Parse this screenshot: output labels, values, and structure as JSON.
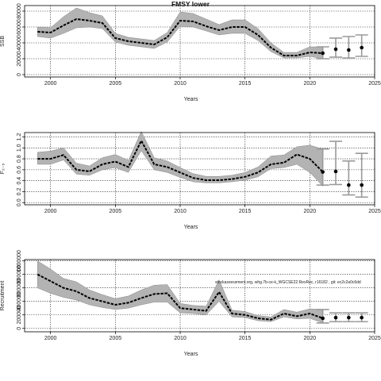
{
  "chart_data": [
    {
      "type": "line",
      "title": "FMSY lower",
      "xlabel": "Years",
      "ylabel": "SSB",
      "xlim": [
        1998,
        2025
      ],
      "ylim": [
        -3000,
        87000
      ],
      "xticks": [
        2000,
        2005,
        2010,
        2015,
        2020,
        2025
      ],
      "yticks": [
        0,
        20000,
        40000,
        60000,
        80000
      ],
      "ytick_labels": [
        "0",
        "20000",
        "40000",
        "60000",
        "80000"
      ],
      "grid": true,
      "x": [
        1999,
        2000,
        2001,
        2002,
        2003,
        2004,
        2005,
        2006,
        2007,
        2008,
        2009,
        2010,
        2011,
        2012,
        2013,
        2014,
        2015,
        2016,
        2017,
        2018,
        2019,
        2020,
        2021
      ],
      "mid": [
        54000,
        53000,
        62000,
        70000,
        68000,
        65000,
        46000,
        42000,
        40000,
        38000,
        47000,
        68000,
        67000,
        61000,
        56000,
        60000,
        60000,
        50000,
        34000,
        24000,
        24000,
        28000,
        27000
      ],
      "lower": [
        48000,
        46000,
        52000,
        59000,
        60000,
        58000,
        41000,
        37000,
        35000,
        33000,
        41000,
        61000,
        60000,
        55000,
        50000,
        52000,
        52000,
        43000,
        29000,
        21000,
        21000,
        23000,
        20000
      ],
      "upper": [
        60000,
        59000,
        73000,
        84000,
        78000,
        74000,
        52000,
        47000,
        45000,
        43000,
        53000,
        79000,
        77000,
        70000,
        63000,
        69000,
        69000,
        58000,
        40000,
        28000,
        28000,
        35000,
        35000
      ],
      "projection": {
        "x": [
          2021,
          2022,
          2023,
          2024
        ],
        "mid": [
          27000,
          32000,
          31000,
          34000
        ],
        "lower": [
          20000,
          22000,
          21000,
          23000
        ],
        "upper": [
          35000,
          46000,
          48000,
          50000
        ]
      }
    },
    {
      "type": "line",
      "xlabel": "Years",
      "ylabel": "F₂₋₅",
      "xlim": [
        1998,
        2025
      ],
      "ylim": [
        -0.04,
        1.28
      ],
      "xticks": [
        2000,
        2005,
        2010,
        2015,
        2020,
        2025
      ],
      "yticks": [
        0,
        0.2,
        0.4,
        0.6,
        0.8,
        1.0,
        1.2
      ],
      "ytick_labels": [
        "0.0",
        "0.2",
        "0.4",
        "0.6",
        "0.8",
        "1.0",
        "1.2"
      ],
      "grid": true,
      "x": [
        1999,
        2000,
        2001,
        2002,
        2003,
        2004,
        2005,
        2006,
        2007,
        2008,
        2009,
        2010,
        2011,
        2012,
        2013,
        2014,
        2015,
        2016,
        2017,
        2018,
        2019,
        2020,
        2021
      ],
      "mid": [
        0.8,
        0.8,
        0.87,
        0.6,
        0.57,
        0.7,
        0.75,
        0.65,
        1.13,
        0.7,
        0.65,
        0.55,
        0.45,
        0.41,
        0.41,
        0.43,
        0.47,
        0.55,
        0.7,
        0.73,
        0.88,
        0.8,
        0.56
      ],
      "lower": [
        0.7,
        0.7,
        0.78,
        0.52,
        0.5,
        0.6,
        0.64,
        0.55,
        0.95,
        0.6,
        0.55,
        0.46,
        0.38,
        0.36,
        0.36,
        0.38,
        0.41,
        0.47,
        0.62,
        0.64,
        0.7,
        0.55,
        0.3
      ],
      "upper": [
        0.92,
        0.94,
        1.0,
        0.72,
        0.67,
        0.82,
        0.88,
        0.77,
        1.3,
        0.82,
        0.76,
        0.64,
        0.53,
        0.48,
        0.48,
        0.5,
        0.55,
        0.65,
        0.85,
        0.87,
        1.02,
        1.05,
        0.98
      ],
      "projection": {
        "x": [
          2021,
          2022,
          2023,
          2024
        ],
        "mid": [
          0.56,
          0.57,
          0.32,
          0.32
        ],
        "lower": [
          0.32,
          0.33,
          0.14,
          0.1
        ],
        "upper": [
          0.98,
          1.12,
          0.76,
          0.9
        ]
      }
    },
    {
      "type": "line",
      "xlabel": "Years",
      "ylabel": "Recruitment",
      "xlim": [
        1998,
        2025
      ],
      "ylim": [
        -50000,
        1020000
      ],
      "xticks": [
        2000,
        2005,
        2010,
        2015,
        2020,
        2025
      ],
      "yticks": [
        0,
        200000,
        400000,
        600000,
        800000,
        1000000
      ],
      "ytick_labels": [
        "0",
        "200000",
        "400000",
        "600000",
        "800000",
        "1000000"
      ],
      "grid": true,
      "note": "stockassessment.org, whg.7b-ce-k_WGCSE22.RevRec, r16182 , git: ec2c2a0c6dd",
      "x": [
        1999,
        2000,
        2001,
        2002,
        2003,
        2004,
        2005,
        2006,
        2007,
        2008,
        2009,
        2010,
        2011,
        2012,
        2013,
        2014,
        2015,
        2016,
        2017,
        2018,
        2019,
        2020,
        2021
      ],
      "mid": [
        800000,
        700000,
        600000,
        550000,
        450000,
        400000,
        350000,
        380000,
        450000,
        510000,
        520000,
        300000,
        280000,
        260000,
        540000,
        220000,
        200000,
        150000,
        130000,
        220000,
        180000,
        220000,
        150000
      ],
      "lower": [
        600000,
        520000,
        460000,
        420000,
        350000,
        310000,
        280000,
        300000,
        350000,
        390000,
        390000,
        230000,
        220000,
        200000,
        400000,
        170000,
        160000,
        115000,
        100000,
        170000,
        140000,
        150000,
        80000
      ],
      "upper": [
        1000000,
        880000,
        740000,
        690000,
        570000,
        500000,
        440000,
        480000,
        570000,
        640000,
        650000,
        370000,
        340000,
        330000,
        720000,
        270000,
        250000,
        190000,
        170000,
        280000,
        240000,
        290000,
        280000
      ],
      "projection": {
        "x": [
          2021,
          2022,
          2023,
          2024
        ],
        "mid": [
          150000,
          160000,
          160000,
          160000
        ],
        "lower": [
          80000,
          100000,
          100000,
          100000
        ],
        "upper": [
          280000,
          230000,
          230000,
          230000
        ]
      }
    }
  ]
}
